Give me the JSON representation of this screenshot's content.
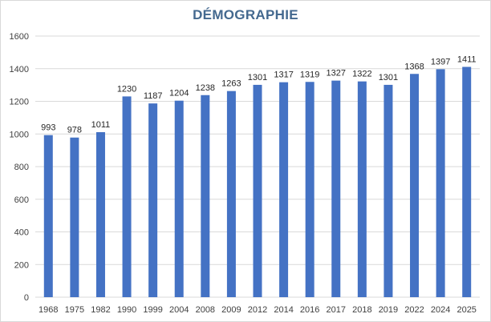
{
  "chart_data": {
    "type": "bar",
    "title": "DÉMOGRAPHIE",
    "xlabel": "",
    "ylabel": "",
    "categories": [
      "1968",
      "1975",
      "1982",
      "1990",
      "1999",
      "2004",
      "2008",
      "2009",
      "2012",
      "2014",
      "2016",
      "2017",
      "2018",
      "2019",
      "2022",
      "2024",
      "2025"
    ],
    "values": [
      993,
      978,
      1011,
      1230,
      1187,
      1204,
      1238,
      1263,
      1301,
      1317,
      1319,
      1327,
      1322,
      1301,
      1368,
      1397,
      1411
    ],
    "ylim": [
      0,
      1600
    ],
    "yticks": [
      "0",
      "200",
      "400",
      "600",
      "800",
      "1000",
      "1200",
      "1400",
      "1600"
    ],
    "grid": true,
    "legend": "none",
    "bar_color": "#4472c4",
    "grid_color": "#d9d9d9"
  }
}
